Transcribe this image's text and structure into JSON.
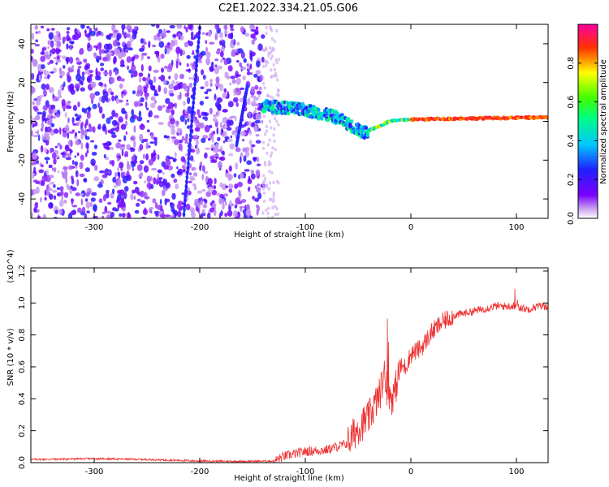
{
  "figure": {
    "title": "C2E1.2022.334.21.05.G06"
  },
  "chart_data": [
    {
      "type": "heatmap",
      "xlabel": "Height of straight line (km)",
      "ylabel": "Frequency (Hz)",
      "xlim": [
        -360,
        130
      ],
      "ylim": [
        -50,
        50
      ],
      "xticks": [
        -300,
        -200,
        -100,
        0,
        100
      ],
      "yticks": [
        -40,
        -20,
        0,
        20,
        40
      ],
      "colorbar": {
        "label": "Normalized spectral amplitude",
        "range": [
          0.0,
          1.0
        ],
        "ticks": [
          0.0,
          0.2,
          0.4,
          0.6,
          0.8
        ],
        "colormap": "rainbow (purple-blue-cyan-green-yellow-red-magenta)"
      },
      "features": [
        {
          "kind": "noise",
          "x_range": [
            -360,
            -140
          ],
          "f_range": [
            -50,
            50
          ]
        },
        {
          "kind": "streak",
          "x": [
            -215,
            -200
          ],
          "f": [
            -48,
            48
          ]
        },
        {
          "kind": "streak",
          "x": [
            -165,
            -155
          ],
          "f": [
            -12,
            18
          ]
        },
        {
          "kind": "signal-trace",
          "x": [
            -140,
            -100,
            -70,
            -45,
            -20,
            0,
            50,
            130
          ],
          "f": [
            8,
            6,
            2,
            -6,
            0,
            1,
            1.5,
            2
          ]
        }
      ],
      "grid": false
    },
    {
      "type": "line",
      "xlabel": "Height of straight line (km)",
      "ylabel": "SNR (10 * v/v)",
      "yscale_label": "(x10^4)",
      "xlim": [
        -360,
        130
      ],
      "ylim": [
        0,
        1.22
      ],
      "xticks": [
        -300,
        -200,
        -100,
        0,
        100
      ],
      "yticks": [
        0.0,
        0.2,
        0.4,
        0.6,
        0.8,
        1.0,
        1.2
      ],
      "series": [
        {
          "color": "#ee3333",
          "x": [
            -360,
            -300,
            -250,
            -200,
            -160,
            -130,
            -120,
            -100,
            -80,
            -60,
            -50,
            -40,
            -30,
            -25,
            -20,
            -15,
            -10,
            -5,
            0,
            10,
            20,
            30,
            40,
            60,
            80,
            100,
            110,
            120,
            130
          ],
          "y": [
            0.02,
            0.025,
            0.02,
            0.01,
            0.008,
            0.01,
            0.04,
            0.07,
            0.08,
            0.12,
            0.22,
            0.28,
            0.42,
            0.55,
            0.38,
            0.45,
            0.6,
            0.6,
            0.68,
            0.72,
            0.82,
            0.88,
            0.92,
            0.95,
            0.98,
            0.98,
            0.96,
            0.98,
            0.98
          ]
        }
      ],
      "grid": false
    }
  ]
}
